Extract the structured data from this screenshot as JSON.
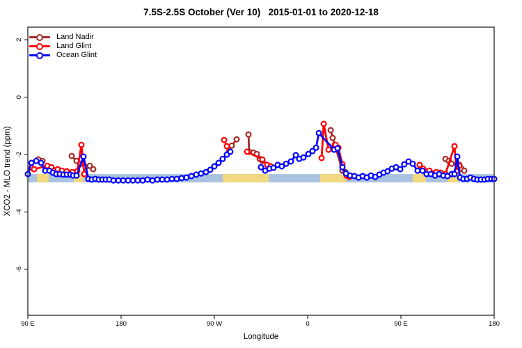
{
  "title": "7.5S-2.5S October (Ver 10)   2015-01-01 to 2020-12-18",
  "x_axis": {
    "label": "Longitude"
  },
  "y_axis": {
    "label": "XCO2 - MLO trend (ppm)"
  },
  "legend": {
    "items": [
      {
        "label": "Land Nadir",
        "color": "#A52A2A"
      },
      {
        "label": "Land Glint",
        "color": "#FF0000"
      },
      {
        "label": "Ocean Glint",
        "color": "#0000FF"
      }
    ]
  },
  "chart_data": {
    "type": "line",
    "title": "7.5S-2.5S October (Ver 10)   2015-01-01 to 2020-12-18",
    "xlabel": "Longitude",
    "ylabel": "XCO2 - MLO trend (ppm)",
    "xlim": [
      0,
      450
    ],
    "ylim": [
      -7.6,
      2.44
    ],
    "x_ticks": [
      {
        "pos": 0,
        "label": "90 E"
      },
      {
        "pos": 90,
        "label": "180"
      },
      {
        "pos": 180,
        "label": "90 W"
      },
      {
        "pos": 270,
        "label": "0"
      },
      {
        "pos": 360,
        "label": "90 E"
      },
      {
        "pos": 450,
        "label": "180"
      }
    ],
    "y_ticks": [
      {
        "val": 2,
        "label": "2"
      },
      {
        "val": 0,
        "label": "0"
      },
      {
        "val": -2,
        "label": "-2"
      },
      {
        "val": -4,
        "label": "-4"
      },
      {
        "val": -6,
        "label": "-6"
      }
    ],
    "land_ocean_strip": {
      "ocean_color": "#AAC3E0",
      "land_color": "#F2D87E",
      "v_top": -2.68,
      "v_bottom": -2.97,
      "land_segments": [
        [
          8.7,
          20.1
        ],
        [
          44.3,
          53.7
        ],
        [
          188,
          232.4
        ],
        [
          282,
          306.9
        ],
        [
          371.4,
          384.2
        ],
        [
          405,
          415.1
        ]
      ]
    },
    "series": [
      {
        "name": "Land Nadir",
        "color": "#A52A2A",
        "marker": "open-circle",
        "segments": [
          [
            [
              10.1,
              -2.17
            ],
            [
              14.1,
              -2.22
            ]
          ],
          [
            [
              42.3,
              -2.05
            ],
            [
              47,
              -2.22
            ],
            [
              51,
              -2.32
            ],
            [
              55.7,
              -2.44
            ],
            [
              59.8,
              -2.39
            ],
            [
              63.1,
              -2.51
            ]
          ],
          [
            [
              194.1,
              -1.9
            ],
            [
              196.8,
              -1.69
            ],
            [
              201.5,
              -1.47
            ]
          ],
          [
            [
              212.9,
              -1.3
            ],
            [
              213.6,
              -1.9
            ],
            [
              217.6,
              -1.93
            ],
            [
              221,
              -1.98
            ],
            [
              223.7,
              -2.15
            ],
            [
              226.3,
              -2.22
            ]
          ],
          [
            [
              292.2,
              -1.15
            ],
            [
              294.2,
              -1.42
            ],
            [
              296.2,
              -1.66
            ],
            [
              303.6,
              -2.56
            ],
            [
              306.3,
              -2.61
            ]
          ],
          [
            [
              403,
              -2.15
            ],
            [
              406.3,
              -2.22
            ],
            [
              409,
              -2.32
            ],
            [
              416.4,
              -2.36
            ],
            [
              418.4,
              -2.49
            ],
            [
              421.1,
              -2.56
            ]
          ]
        ]
      },
      {
        "name": "Land Glint",
        "color": "#FF0000",
        "marker": "open-circle",
        "segments": [
          [
            [
              3.4,
              -2.46
            ],
            [
              6,
              -2.51
            ],
            [
              18.8,
              -2.39
            ],
            [
              22.8,
              -2.44
            ],
            [
              28.9,
              -2.51
            ],
            [
              32.9,
              -2.56
            ],
            [
              37.6,
              -2.58
            ],
            [
              43,
              -2.61
            ],
            [
              47.7,
              -2.58
            ],
            [
              51.7,
              -1.66
            ],
            [
              54.4,
              -2.68
            ]
          ],
          [
            [
              189.4,
              -1.49
            ],
            [
              192.1,
              -1.71
            ],
            [
              194.8,
              -1.9
            ]
          ],
          [
            [
              211.6,
              -1.9
            ],
            [
              226.3,
              -2.17
            ],
            [
              231,
              -2.36
            ],
            [
              234.4,
              -2.41
            ]
          ],
          [
            [
              283.5,
              -2.12
            ],
            [
              285.5,
              -0.93
            ],
            [
              290.2,
              -1.83
            ],
            [
              296.9,
              -1.66
            ],
            [
              299.6,
              -1.76
            ],
            [
              303.6,
              -2.34
            ],
            [
              307.6,
              -2.73
            ],
            [
              310.3,
              -2.78
            ]
          ],
          [
            [
              378.1,
              -2.36
            ],
            [
              381.5,
              -2.49
            ],
            [
              387.5,
              -2.56
            ],
            [
              394.2,
              -2.61
            ],
            [
              398.3,
              -2.63
            ],
            [
              403,
              -2.68
            ],
            [
              411.7,
              -1.71
            ],
            [
              413.7,
              -2.58
            ],
            [
              416.4,
              -2.39
            ]
          ]
        ]
      },
      {
        "name": "Ocean Glint",
        "color": "#0000FF",
        "marker": "open-circle",
        "segments": [
          [
            [
              0,
              -2.68
            ],
            [
              3.4,
              -2.29
            ],
            [
              8.1,
              -2.22
            ],
            [
              12.8,
              -2.29
            ],
            [
              16.8,
              -2.56
            ],
            [
              20.8,
              -2.56
            ],
            [
              24.2,
              -2.63
            ],
            [
              27.5,
              -2.68
            ],
            [
              30.9,
              -2.68
            ],
            [
              34.3,
              -2.7
            ],
            [
              37.6,
              -2.7
            ],
            [
              41,
              -2.7
            ],
            [
              43.7,
              -2.73
            ],
            [
              47,
              -2.73
            ],
            [
              53.7,
              -2.07
            ],
            [
              58.4,
              -2.85
            ],
            [
              61.8,
              -2.87
            ],
            [
              65.1,
              -2.85
            ],
            [
              68.5,
              -2.87
            ],
            [
              71.9,
              -2.87
            ],
            [
              75.2,
              -2.87
            ],
            [
              78.6,
              -2.87
            ],
            [
              82.6,
              -2.9
            ],
            [
              87.3,
              -2.9
            ],
            [
              92,
              -2.9
            ],
            [
              96.7,
              -2.9
            ],
            [
              101.4,
              -2.9
            ],
            [
              106.1,
              -2.9
            ],
            [
              110.8,
              -2.9
            ],
            [
              115.5,
              -2.87
            ],
            [
              120.2,
              -2.9
            ],
            [
              124.9,
              -2.87
            ],
            [
              129.6,
              -2.87
            ],
            [
              134.3,
              -2.87
            ],
            [
              139,
              -2.85
            ],
            [
              143.7,
              -2.85
            ],
            [
              148.4,
              -2.82
            ],
            [
              153.1,
              -2.8
            ],
            [
              157.8,
              -2.75
            ],
            [
              162.5,
              -2.7
            ],
            [
              167.2,
              -2.66
            ],
            [
              171.9,
              -2.61
            ],
            [
              176,
              -2.53
            ],
            [
              180,
              -2.41
            ],
            [
              184,
              -2.29
            ],
            [
              188,
              -2.15
            ],
            [
              192.1,
              -2.0
            ],
            [
              195.4,
              -1.9
            ]
          ],
          [
            [
              225,
              -2.44
            ],
            [
              229,
              -2.56
            ],
            [
              233.1,
              -2.49
            ],
            [
              237.1,
              -2.46
            ],
            [
              241.1,
              -2.36
            ],
            [
              245.1,
              -2.41
            ],
            [
              249.2,
              -2.32
            ],
            [
              253.9,
              -2.24
            ],
            [
              258.6,
              -2.02
            ],
            [
              261.9,
              -2.15
            ],
            [
              266,
              -2.1
            ],
            [
              270.7,
              -1.98
            ],
            [
              274.7,
              -1.88
            ],
            [
              278.1,
              -1.76
            ],
            [
              280.8,
              -1.25
            ],
            [
              295.5,
              -1.83
            ],
            [
              298.9,
              -1.78
            ],
            [
              303.6,
              -2.44
            ],
            [
              307,
              -2.66
            ],
            [
              311,
              -2.73
            ],
            [
              315,
              -2.75
            ],
            [
              319.1,
              -2.8
            ],
            [
              323.1,
              -2.75
            ],
            [
              327.1,
              -2.8
            ],
            [
              331.1,
              -2.73
            ],
            [
              335.2,
              -2.78
            ],
            [
              339.2,
              -2.7
            ],
            [
              343.2,
              -2.63
            ],
            [
              347.2,
              -2.58
            ],
            [
              351.3,
              -2.49
            ],
            [
              355.3,
              -2.44
            ],
            [
              359.3,
              -2.51
            ],
            [
              363.3,
              -2.34
            ],
            [
              367.4,
              -2.24
            ],
            [
              371.4,
              -2.32
            ],
            [
              376.1,
              -2.56
            ],
            [
              380.8,
              -2.56
            ],
            [
              384.8,
              -2.68
            ],
            [
              388.9,
              -2.68
            ],
            [
              392.9,
              -2.73
            ],
            [
              396.9,
              -2.68
            ],
            [
              400.9,
              -2.73
            ],
            [
              405,
              -2.75
            ],
            [
              409,
              -2.68
            ],
            [
              411.7,
              -2.68
            ],
            [
              414.4,
              -2.07
            ],
            [
              417.1,
              -2.8
            ],
            [
              420.4,
              -2.85
            ],
            [
              423.8,
              -2.85
            ],
            [
              427.1,
              -2.8
            ],
            [
              430.5,
              -2.85
            ],
            [
              433.8,
              -2.87
            ],
            [
              437.2,
              -2.87
            ],
            [
              440.6,
              -2.87
            ],
            [
              443.9,
              -2.85
            ],
            [
              447.3,
              -2.85
            ],
            [
              450,
              -2.85
            ]
          ]
        ]
      }
    ]
  }
}
